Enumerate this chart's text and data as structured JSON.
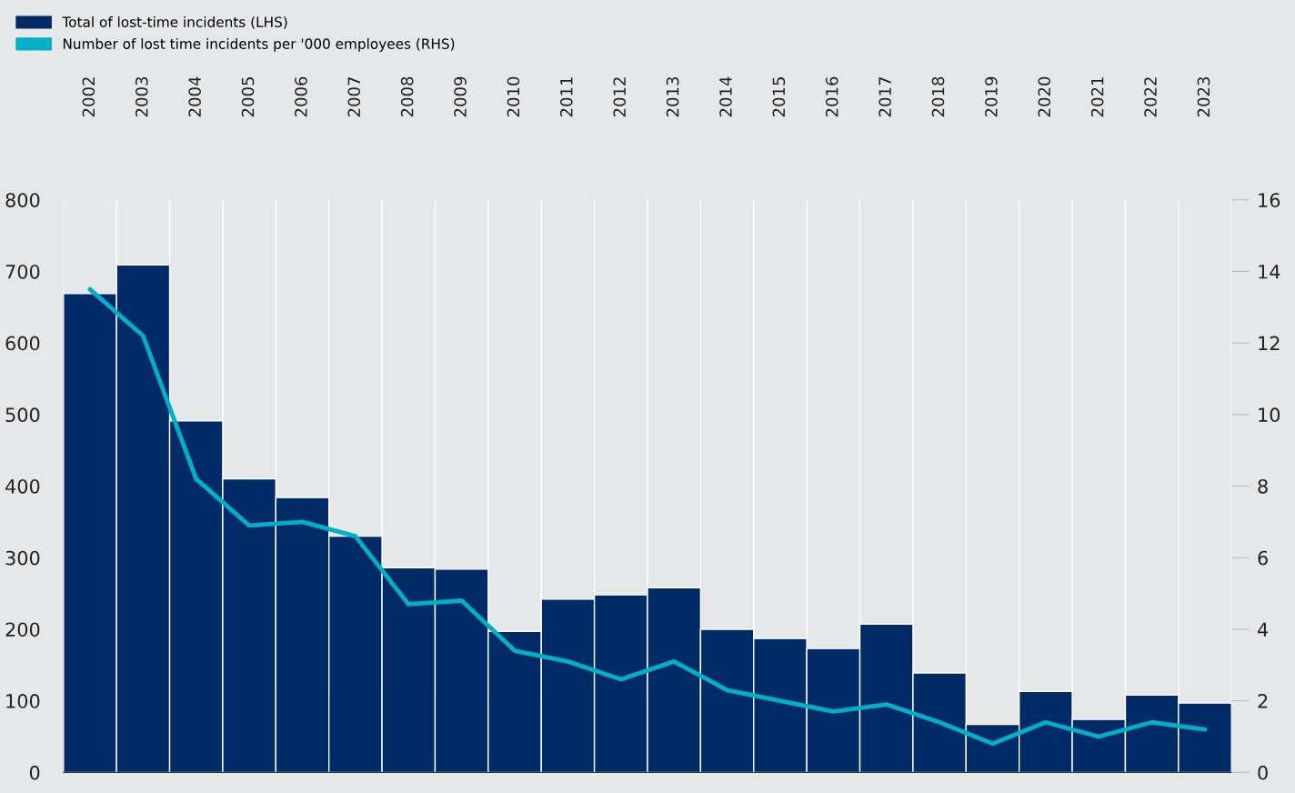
{
  "chart_data": {
    "type": "bar",
    "categories": [
      "2002",
      "2003",
      "2004",
      "2005",
      "2006",
      "2007",
      "2008",
      "2009",
      "2010",
      "2011",
      "2012",
      "2013",
      "2014",
      "2015",
      "2016",
      "2017",
      "2018",
      "2019",
      "2020",
      "2021",
      "2022",
      "2023"
    ],
    "series": [
      {
        "name": "Total of lost-time incidents (LHS)",
        "color": "#002b66",
        "values": [
          669,
          709,
          491,
          410,
          384,
          330,
          286,
          284,
          197,
          242,
          248,
          258,
          200,
          187,
          173,
          207,
          139,
          67,
          113,
          74,
          108,
          97
        ]
      },
      {
        "name": "Number of lost time incidents per '000 employees (RHS)",
        "type": "line",
        "axis": "y2",
        "color": "#00b0c8",
        "values": [
          13.5,
          12.2,
          8.2,
          6.9,
          7.0,
          6.6,
          4.7,
          4.8,
          3.4,
          3.1,
          2.6,
          3.1,
          2.3,
          2.0,
          1.7,
          1.9,
          1.4,
          0.8,
          1.4,
          1.0,
          1.4,
          1.2
        ]
      }
    ],
    "ylim": [
      0,
      800
    ],
    "yticks": [
      0,
      100,
      200,
      300,
      400,
      500,
      600,
      700,
      800
    ],
    "y2lim": [
      0,
      16
    ],
    "y2ticks": [
      0,
      2,
      4,
      6,
      8,
      10,
      12,
      14,
      16
    ],
    "grid": "x",
    "legend": "top left",
    "marker": "none",
    "line_style": "solid"
  }
}
